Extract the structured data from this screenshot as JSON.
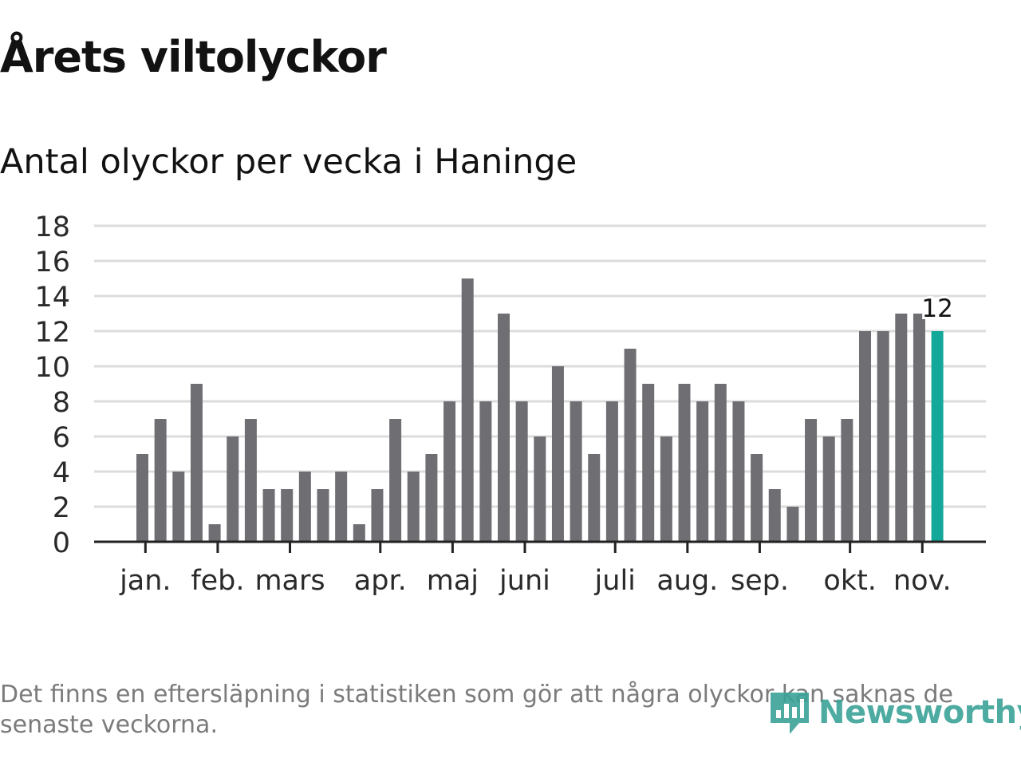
{
  "header": {
    "title": "Årets viltolyckor",
    "subtitle": "Antal olyckor per vecka i Haninge"
  },
  "footer": {
    "note": "Det finns en eftersläpning i statistiken som gör att några olyckor kan saknas de senaste veckorna.",
    "logo_text": "Newsworthy",
    "logo_icon": "newsworthy-bar-icon"
  },
  "colors": {
    "bar": "#6f6e73",
    "highlight": "#14a89b",
    "grid": "#dcdcdc",
    "axis": "#222222",
    "text": "#121212",
    "logo": "#3aa397"
  },
  "chart_data": {
    "type": "bar",
    "title": "Årets viltolyckor",
    "subtitle": "Antal olyckor per vecka i Haninge",
    "xlabel": "",
    "ylabel": "",
    "ylim": [
      0,
      18
    ],
    "yticks": [
      0,
      2,
      4,
      6,
      8,
      10,
      12,
      14,
      16,
      18
    ],
    "grid": true,
    "values": [
      5,
      7,
      4,
      9,
      1,
      6,
      7,
      3,
      3,
      4,
      3,
      4,
      1,
      3,
      7,
      4,
      5,
      8,
      15,
      8,
      13,
      8,
      6,
      10,
      8,
      5,
      8,
      11,
      9,
      6,
      9,
      8,
      9,
      8,
      5,
      3,
      2,
      7,
      6,
      7,
      12,
      12,
      13,
      13,
      12
    ],
    "highlight_index": 44,
    "highlight_label": "12",
    "month_labels": [
      {
        "label": "jan.",
        "bar": 0.5
      },
      {
        "label": "feb.",
        "bar": 4.5
      },
      {
        "label": "mars",
        "bar": 8.5
      },
      {
        "label": "apr.",
        "bar": 13.5
      },
      {
        "label": "maj",
        "bar": 17.5
      },
      {
        "label": "juni",
        "bar": 21.5
      },
      {
        "label": "juli",
        "bar": 26.5
      },
      {
        "label": "aug.",
        "bar": 30.5
      },
      {
        "label": "sep.",
        "bar": 34.5
      },
      {
        "label": "okt.",
        "bar": 39.5
      },
      {
        "label": "nov.",
        "bar": 43.5
      }
    ]
  }
}
